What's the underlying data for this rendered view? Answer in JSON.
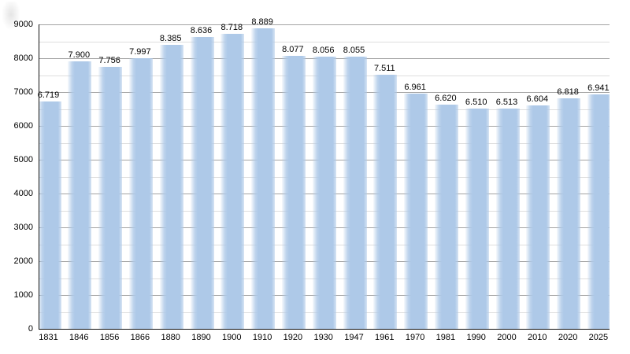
{
  "chart_data": {
    "type": "bar",
    "title": "",
    "xlabel": "",
    "ylabel": "",
    "categories": [
      "1831",
      "1846",
      "1856",
      "1866",
      "1880",
      "1890",
      "1900",
      "1910",
      "1920",
      "1930",
      "1947",
      "1961",
      "1970",
      "1981",
      "1990",
      "2000",
      "2010",
      "2020",
      "2025"
    ],
    "values": [
      6719,
      7900,
      7756,
      7997,
      8385,
      8636,
      8718,
      8889,
      8077,
      8056,
      8055,
      7511,
      6961,
      6620,
      6510,
      6513,
      6604,
      6818,
      6941
    ],
    "value_labels": [
      "6.719",
      "7.900",
      "7.756",
      "7.997",
      "8.385",
      "8.636",
      "8.718",
      "8.889",
      "8.077",
      "8.056",
      "8.055",
      "7.511",
      "6.961",
      "6.620",
      "6.510",
      "6.513",
      "6.604",
      "6.818",
      "6.941"
    ],
    "y_ticks": [
      "0",
      "1000",
      "2000",
      "3000",
      "4000",
      "5000",
      "6000",
      "7000",
      "8000",
      "9000"
    ],
    "ylim": [
      0,
      9000
    ],
    "grid": {
      "major_step": 1000,
      "minor_step": 500,
      "visible": true
    },
    "legend": {
      "visible": false
    },
    "colors": {
      "bar": "#aec9e8",
      "grid_major": "#a3a3a3",
      "grid_minor": "#dedede",
      "axis": "#111111",
      "text": "#000000",
      "background": "#ffffff"
    }
  }
}
